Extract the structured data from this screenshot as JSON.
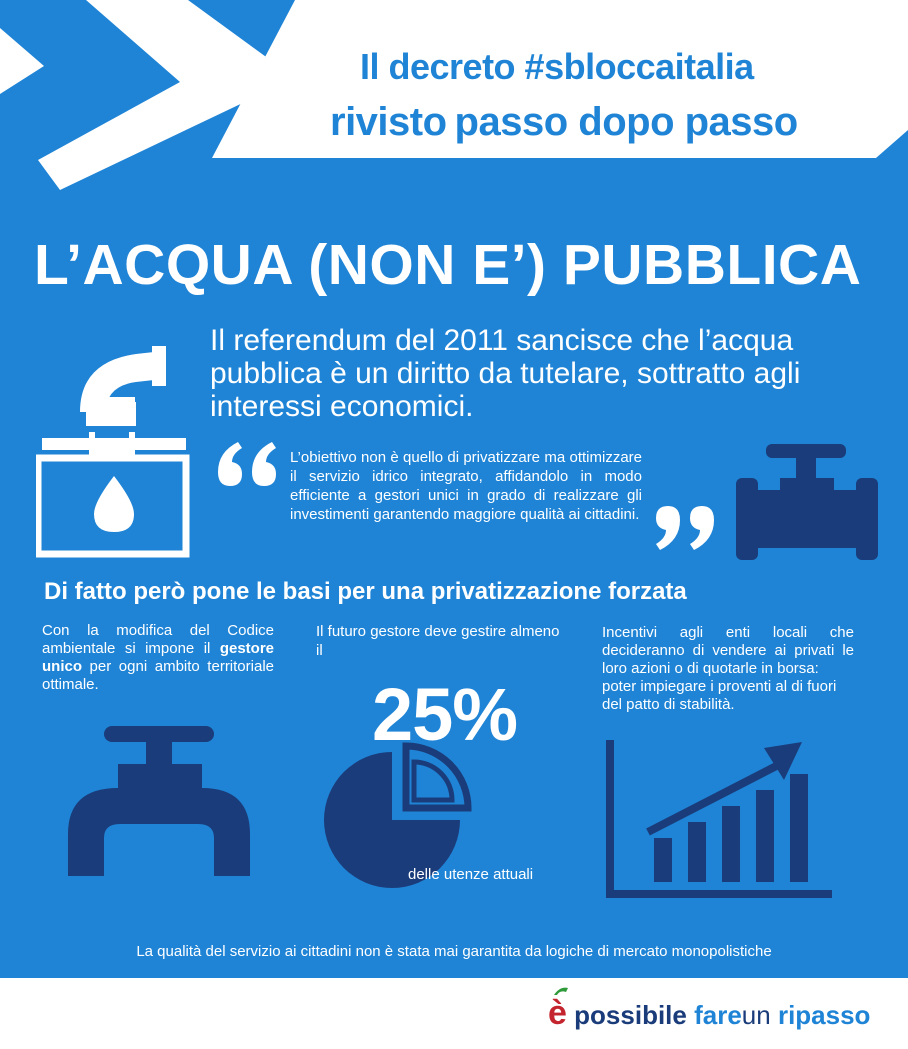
{
  "header": {
    "title_line1": "Il decreto #sbloccaitalia",
    "title_line2_a": "rivisto",
    "title_line2_b": "passo dopo passo"
  },
  "headline": "L’ACQUA (NON E’) PUBBLICA",
  "intro": "Il referendum del 2011 sancisce che l’acqua pubblica è un diritto da tutelare, sottratto agli interessi economici.",
  "quote": "L’obiettivo non è quello di privatizzare ma ottimizzare il servizio idrico integrato, affidandolo in modo efficiente a gestori unici in grado di realizzare gli investimenti garantendo maggiore qualità ai cittadini.",
  "subhead": "Di fatto però pone le basi per una privatizzazione forzata",
  "col1": {
    "text_a": "Con la modifica del Codice ambientale si impone il ",
    "text_bold": "gestore unico",
    "text_b": " per ogni ambito territoriale ottimale."
  },
  "col2": {
    "text": "Il futuro gestore deve gestire almeno il",
    "percent": "25%",
    "percent_value": 25,
    "caption": "delle utenze attuali"
  },
  "col3": {
    "text_a": "Incentivi agli enti locali che decideranno di vendere ai privati le loro azioni o di quotarle in borsa:",
    "text_b": "poter impiegare i proventi al di fuori del patto di stabilità."
  },
  "footnote": "La qualità del servizio ai cittadini non è stata mai garantita da logiche di mercato monopolistiche",
  "brand": {
    "e": "è",
    "w1": "possibile",
    "w2": "fare",
    "w3": "un",
    "w4": "ripasso"
  },
  "icons": {
    "faucet_ballot": "faucet-ballot-box-icon",
    "pipe_valve": "pipe-valve-icon",
    "tap": "tap-icon",
    "pie": "pie-chart-icon",
    "growth": "growth-chart-icon",
    "quote_open": "open-quote-icon",
    "quote_close": "close-quote-icon"
  },
  "colors": {
    "background_blue": "#1f84d6",
    "dark_navy": "#1a3c7a",
    "white": "#ffffff",
    "brand_red": "#c4242e",
    "brand_green": "#2f9a3a"
  }
}
